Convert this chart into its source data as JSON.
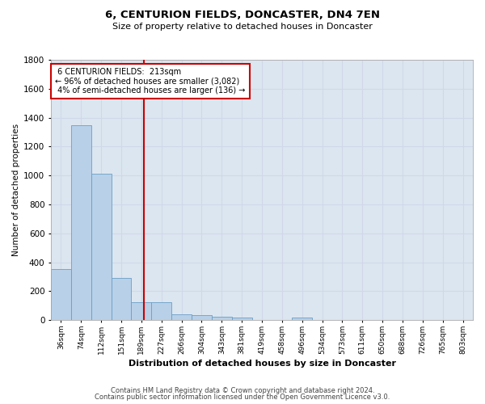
{
  "title1": "6, CENTURION FIELDS, DONCASTER, DN4 7EN",
  "title2": "Size of property relative to detached houses in Doncaster",
  "xlabel": "Distribution of detached houses by size in Doncaster",
  "ylabel": "Number of detached properties",
  "property_label": "6 CENTURION FIELDS:  213sqm",
  "pct_smaller": 96,
  "n_smaller": "3,082",
  "pct_larger": 4,
  "n_larger": 136,
  "bin_labels": [
    "36sqm",
    "74sqm",
    "112sqm",
    "151sqm",
    "189sqm",
    "227sqm",
    "266sqm",
    "304sqm",
    "343sqm",
    "381sqm",
    "419sqm",
    "458sqm",
    "496sqm",
    "534sqm",
    "573sqm",
    "611sqm",
    "650sqm",
    "688sqm",
    "726sqm",
    "765sqm",
    "803sqm"
  ],
  "bar_values": [
    355,
    1350,
    1010,
    290,
    125,
    125,
    40,
    35,
    25,
    20,
    0,
    0,
    20,
    0,
    0,
    0,
    0,
    0,
    0,
    0,
    0
  ],
  "bar_color": "#b8d0e8",
  "bar_edge_color": "#6a9fc8",
  "vline_color": "#cc0000",
  "vline_x_idx": 4.63,
  "annotation_box_color": "#cc0000",
  "ylim": [
    0,
    1800
  ],
  "yticks": [
    0,
    200,
    400,
    600,
    800,
    1000,
    1200,
    1400,
    1600,
    1800
  ],
  "grid_color": "#d0d8e8",
  "bg_color": "#dce6f0",
  "footer1": "Contains HM Land Registry data © Crown copyright and database right 2024.",
  "footer2": "Contains public sector information licensed under the Open Government Licence v3.0."
}
